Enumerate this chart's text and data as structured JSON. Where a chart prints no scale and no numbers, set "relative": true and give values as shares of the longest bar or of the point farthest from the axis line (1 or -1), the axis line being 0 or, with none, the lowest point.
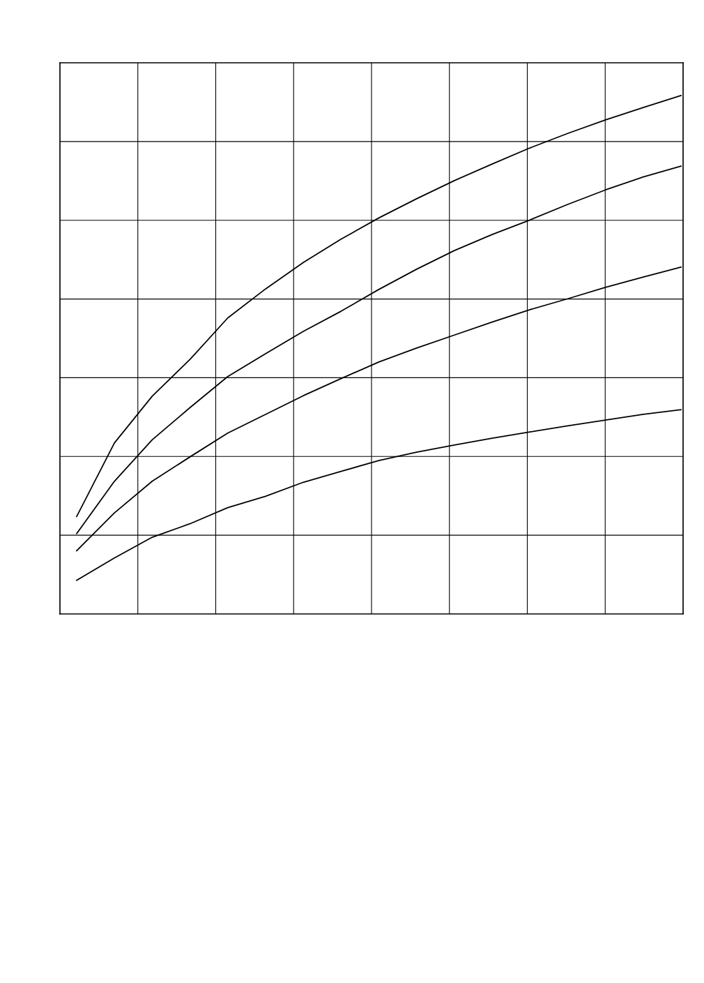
{
  "chart_data": {
    "type": "line",
    "relative": true,
    "grid": true,
    "line_style": "solid",
    "marker": "none",
    "categories": [
      null,
      null,
      null,
      null,
      null,
      null,
      null,
      null,
      null,
      null,
      null,
      null,
      null,
      null,
      null,
      null,
      null
    ],
    "series": [
      {
        "color": "#000000",
        "values": [
          0.188,
          0.33,
          0.42,
          0.491,
          0.571,
          0.627,
          0.678,
          0.723,
          0.764,
          0.801,
          0.836,
          0.868,
          0.899,
          0.927,
          0.953,
          0.977,
          1.0
        ]
      },
      {
        "color": "#000000",
        "values": [
          0.155,
          0.256,
          0.336,
          0.398,
          0.458,
          0.502,
          0.545,
          0.584,
          0.626,
          0.665,
          0.701,
          0.732,
          0.76,
          0.79,
          0.818,
          0.843,
          0.864
        ]
      },
      {
        "color": "#000000",
        "values": [
          0.122,
          0.195,
          0.256,
          0.303,
          0.349,
          0.385,
          0.421,
          0.454,
          0.486,
          0.513,
          0.538,
          0.563,
          0.587,
          0.608,
          0.63,
          0.65,
          0.669
        ]
      },
      {
        "color": "#000000",
        "values": [
          0.065,
          0.108,
          0.148,
          0.174,
          0.205,
          0.227,
          0.254,
          0.275,
          0.296,
          0.312,
          0.326,
          0.339,
          0.351,
          0.363,
          0.374,
          0.385,
          0.394
        ]
      }
    ]
  }
}
